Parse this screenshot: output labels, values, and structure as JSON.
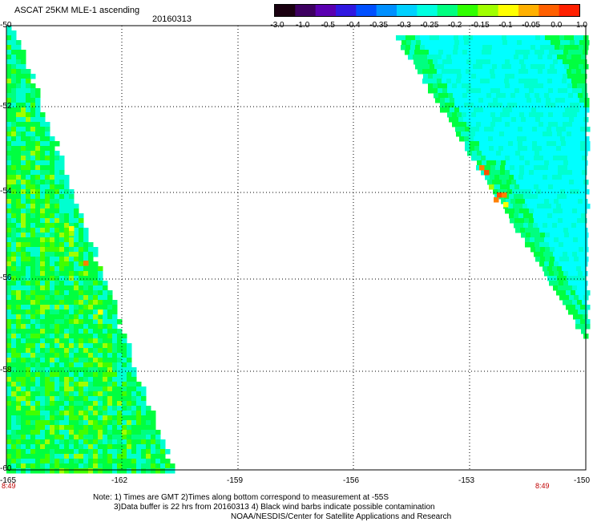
{
  "header": {
    "title": "ASCAT 25KM MLE-1 ascending",
    "date": "20160313"
  },
  "colorbar": {
    "labels": [
      "-3.0",
      "-1.0",
      "-0.5",
      "-0.4",
      "-0.35",
      "-0.3",
      "-0.25",
      "-0.2",
      "-0.15",
      "-0.1",
      "-0.05",
      "0.0",
      "1.0"
    ],
    "colors": [
      "#1a0010",
      "#3d0060",
      "#5a00b0",
      "#3018e0",
      "#0050ff",
      "#0090ff",
      "#00d0ff",
      "#00ffe0",
      "#00ff80",
      "#30ff00",
      "#a0ff00",
      "#ffff00",
      "#ffb000",
      "#ff6000",
      "#ff2000"
    ]
  },
  "axes": {
    "lat_labels": [
      "-50",
      "-52",
      "-54",
      "-56",
      "-58",
      "-60"
    ],
    "lon_labels": [
      "-165",
      "-162",
      "-159",
      "-156",
      "-153",
      "-150"
    ],
    "time_labels": [
      "8:49",
      "8:49"
    ]
  },
  "swath_colors": {
    "green": "#00ff40",
    "mint": "#00ff80",
    "cyan": "#00ffd0",
    "cyan_light": "#00ffff",
    "lime": "#40ff00",
    "yellow_green": "#a0ff00",
    "yellow": "#ffff00",
    "orange": "#ff8000",
    "red_orange": "#ff5000"
  },
  "notes": {
    "line1": "Note: 1) Times are GMT 2)Times along bottom correspond to measurement at -55S",
    "line2": "3)Data buffer is 22 hrs from 20160313 4) Black wind barbs indicate possible contamination",
    "line3": "NOAA/NESDIS/Center for Satellite Applications and Research"
  }
}
